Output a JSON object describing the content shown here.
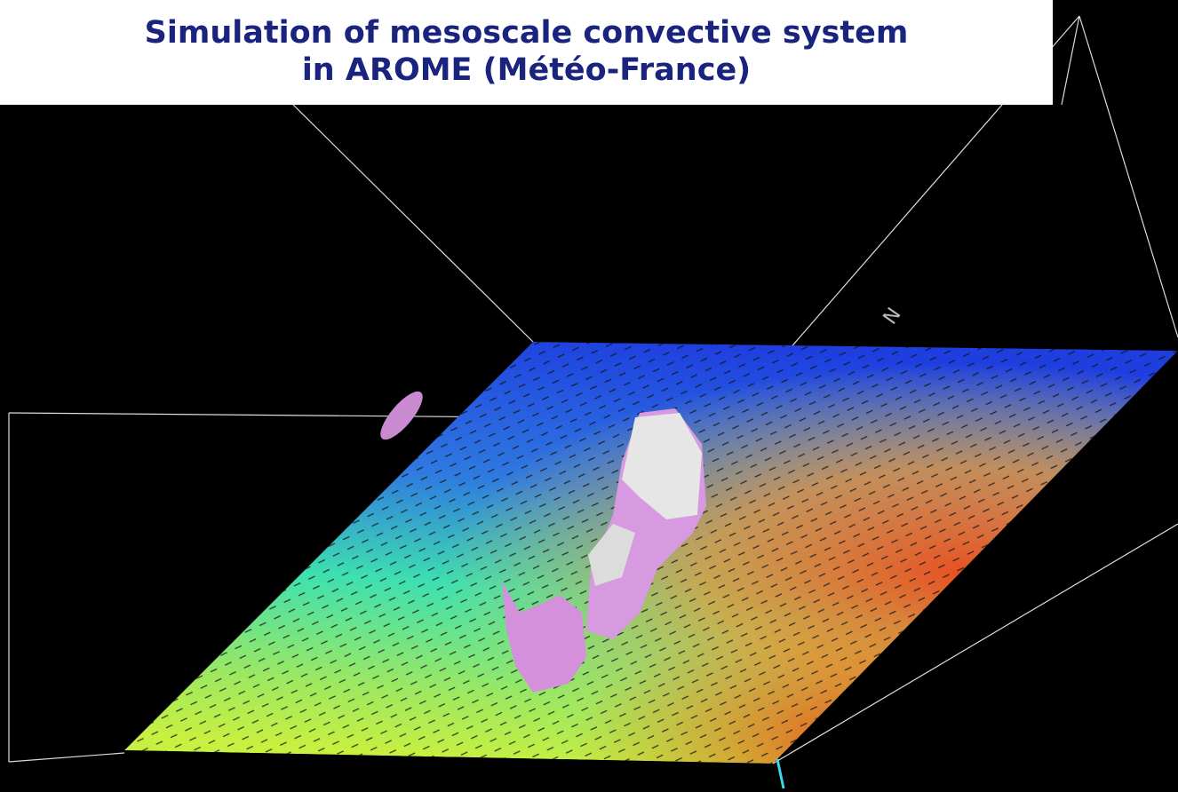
{
  "title": {
    "line1": "Simulation of mesoscale convective system",
    "line2": "in AROME (Météo-France)"
  },
  "compass_label": "N"
}
